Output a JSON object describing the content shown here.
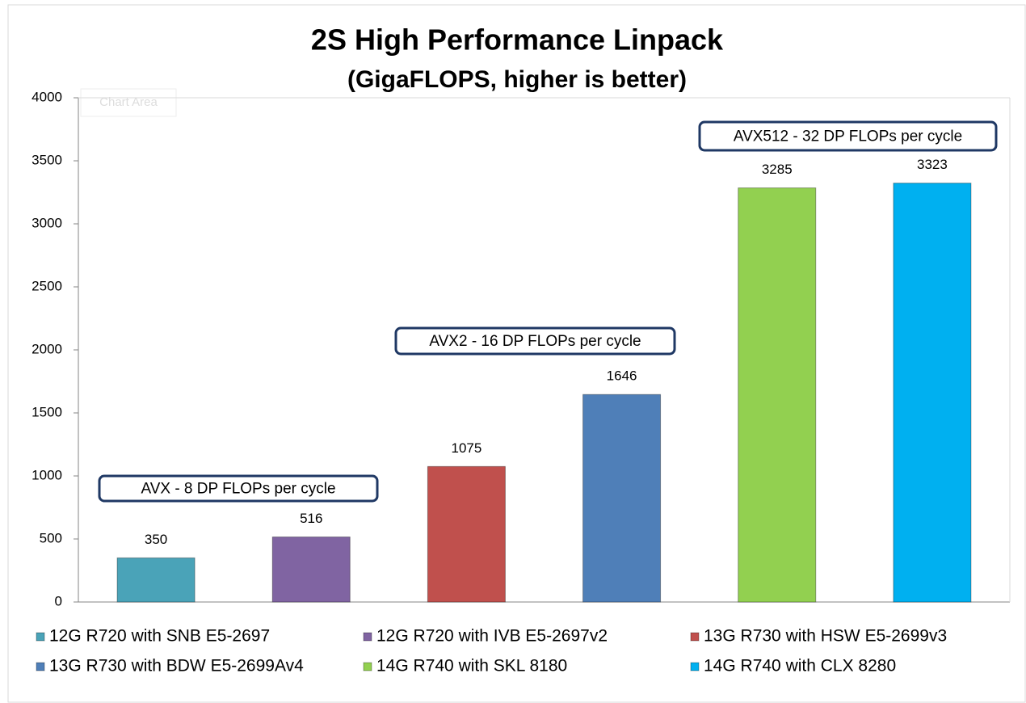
{
  "chart_data": {
    "type": "bar",
    "title": "2S High Performance Linpack",
    "subtitle": "(GigaFLOPS, higher is better)",
    "tooltip": "Chart Area",
    "series": [
      {
        "name": "12G R720 with SNB E5-2697",
        "color": "#4aa3b8",
        "values": [
          350
        ]
      },
      {
        "name": "12G R720 with IVB E5-2697v2",
        "color": "#8064a2",
        "values": [
          516
        ]
      },
      {
        "name": "13G R730 with HSW E5-2699v3",
        "color": "#c0504d",
        "values": [
          1075
        ]
      },
      {
        "name": "13G R730 with BDW E5-2699Av4",
        "color": "#4f7fb8",
        "values": [
          1646
        ]
      },
      {
        "name": "14G R740 with SKL 8180",
        "color": "#92d050",
        "values": [
          3285
        ]
      },
      {
        "name": "14G R740 with CLX 8280",
        "color": "#00b0f0",
        "values": [
          3323
        ]
      }
    ],
    "annotations": [
      "AVX - 8 DP FLOPs per cycle",
      "AVX2 - 16 DP FLOPs per cycle",
      "AVX512 - 32 DP FLOPs per cycle"
    ],
    "ylim": [
      0,
      4000
    ],
    "yticks": [
      0,
      500,
      1000,
      1500,
      2000,
      2500,
      3000,
      3500,
      4000
    ],
    "grid": false,
    "legend": "bottom"
  }
}
